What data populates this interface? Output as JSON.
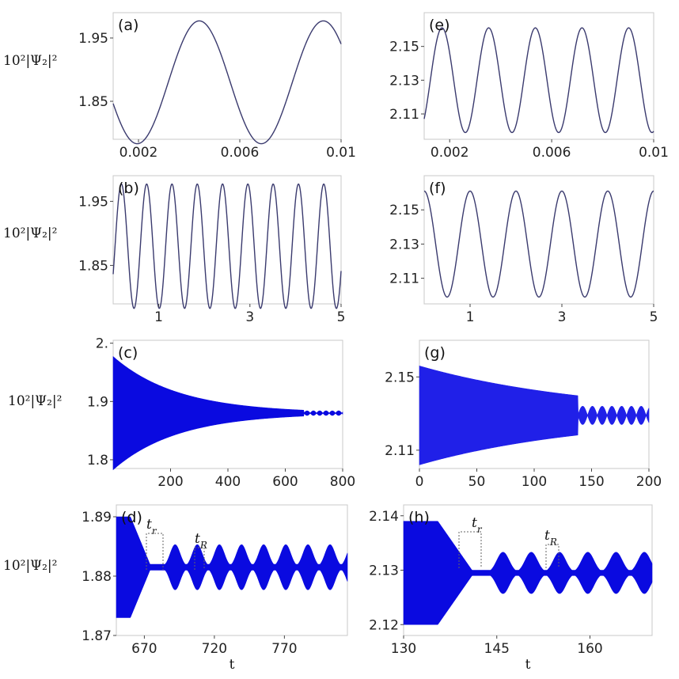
{
  "ylabel": "10²|Ψ₂|²",
  "xlabel": "t",
  "chart_data": [
    {
      "type": "line",
      "panel": "(a)",
      "x_range": [
        0.001,
        0.01
      ],
      "ylim": [
        1.79,
        1.99
      ],
      "xticks": [
        0.002,
        0.006,
        0.01
      ],
      "xtick_labels": [
        "0.002",
        "0.006",
        "0.01"
      ],
      "yticks": [
        1.85,
        1.95
      ],
      "ytick_labels": [
        "1.85",
        "1.95"
      ],
      "mode": "sine",
      "mid": 1.88,
      "amp": 0.097,
      "period": 0.0049,
      "phase_x": 0.0044,
      "color": "#3a3a6e"
    },
    {
      "type": "line",
      "panel": "(e)",
      "x_range": [
        0.001,
        0.01
      ],
      "ylim": [
        2.095,
        2.17
      ],
      "xticks": [
        0.002,
        0.006,
        0.01
      ],
      "xtick_labels": [
        "0.002",
        "0.006",
        "0.01"
      ],
      "yticks": [
        2.11,
        2.13,
        2.15
      ],
      "ytick_labels": [
        "2.11",
        "2.13",
        "2.15"
      ],
      "mode": "sine",
      "mid": 2.13,
      "amp": 0.031,
      "period": 0.00183,
      "phase_x": 0.0017,
      "color": "#3a3a6e"
    },
    {
      "type": "line",
      "panel": "(b)",
      "x_range": [
        0,
        5
      ],
      "ylim": [
        1.79,
        1.99
      ],
      "xticks": [
        1,
        3,
        5
      ],
      "xtick_labels": [
        "1",
        "3",
        "5"
      ],
      "yticks": [
        1.85,
        1.95
      ],
      "ytick_labels": [
        "1.85",
        "1.95"
      ],
      "mode": "sine",
      "mid": 1.88,
      "amp": 0.097,
      "period": 0.555,
      "phase_x": 0.18,
      "color": "#3a3a6e"
    },
    {
      "type": "line",
      "panel": "(f)",
      "x_range": [
        0,
        5
      ],
      "ylim": [
        2.095,
        2.17
      ],
      "xticks": [
        1,
        3,
        5
      ],
      "xtick_labels": [
        "1",
        "3",
        "5"
      ],
      "yticks": [
        2.11,
        2.13,
        2.15
      ],
      "ytick_labels": [
        "2.11",
        "2.13",
        "2.15"
      ],
      "mode": "sine",
      "mid": 2.13,
      "amp": 0.031,
      "period": 1.0,
      "phase_x": 0.0,
      "color": "#3a3a6e"
    },
    {
      "type": "area",
      "panel": "(c)",
      "x_range": [
        0,
        800
      ],
      "ylim": [
        1.785,
        2.005
      ],
      "xticks": [
        200,
        400,
        600,
        800
      ],
      "xtick_labels": [
        "200",
        "400",
        "600",
        "800"
      ],
      "yticks": [
        1.8,
        1.9,
        2.0
      ],
      "ytick_labels": [
        "1.8",
        "1.9",
        "2."
      ],
      "mode": "decay",
      "mid": 1.88,
      "amp0": 0.097,
      "tau": 225,
      "t_switch": 665,
      "beat_amp": 0.004,
      "beat_period": 22,
      "color": "#0a0ae0"
    },
    {
      "type": "area",
      "panel": "(g)",
      "x_range": [
        0,
        200
      ],
      "ylim": [
        2.1,
        2.17
      ],
      "xticks": [
        0,
        50,
        100,
        150,
        200
      ],
      "xtick_labels": [
        "0",
        "50",
        "100",
        "150",
        "200"
      ],
      "yticks": [
        2.11,
        2.15
      ],
      "ytick_labels": [
        "2.11",
        "2.15"
      ],
      "mode": "decay",
      "mid": 2.129,
      "amp0": 0.027,
      "tau": 150,
      "t_switch": 138,
      "beat_amp": 0.005,
      "beat_period": 8.5,
      "color": "#2020e8"
    },
    {
      "type": "area",
      "panel": "(d)",
      "x_range": [
        650,
        815
      ],
      "ylim": [
        1.87,
        1.892
      ],
      "xticks": [
        670,
        720,
        770
      ],
      "xtick_labels": [
        "670",
        "720",
        "770"
      ],
      "yticks": [
        1.87,
        1.88,
        1.89
      ],
      "ytick_labels": [
        "1.87",
        "1.88",
        "1.89"
      ],
      "mode": "revival",
      "mid": 1.8815,
      "amp0": 0.0085,
      "t_flat": 660,
      "t_r": 674,
      "first_peak": 692,
      "revival_period": 15.8,
      "revival_amp": 0.0038,
      "revival_width": 5,
      "color": "#0a0ae0",
      "annotations": [
        "t",
        "t"
      ],
      "annotation_subs": [
        "r",
        "R"
      ]
    },
    {
      "type": "area",
      "panel": "(h)",
      "x_range": [
        130,
        170
      ],
      "ylim": [
        2.118,
        2.142
      ],
      "xticks": [
        130,
        145,
        160
      ],
      "xtick_labels": [
        "130",
        "145",
        "160"
      ],
      "yticks": [
        2.12,
        2.13,
        2.14
      ],
      "ytick_labels": [
        "2.12",
        "2.13",
        "2.14"
      ],
      "mode": "revival",
      "mid": 2.1295,
      "amp0": 0.0095,
      "t_flat": 135.5,
      "t_r": 141,
      "first_peak": 146,
      "revival_period": 4.55,
      "revival_amp": 0.0038,
      "revival_width": 1.4,
      "color": "#0a0ae0",
      "annotations": [
        "t",
        "t"
      ],
      "annotation_subs": [
        "r",
        "R"
      ]
    }
  ]
}
